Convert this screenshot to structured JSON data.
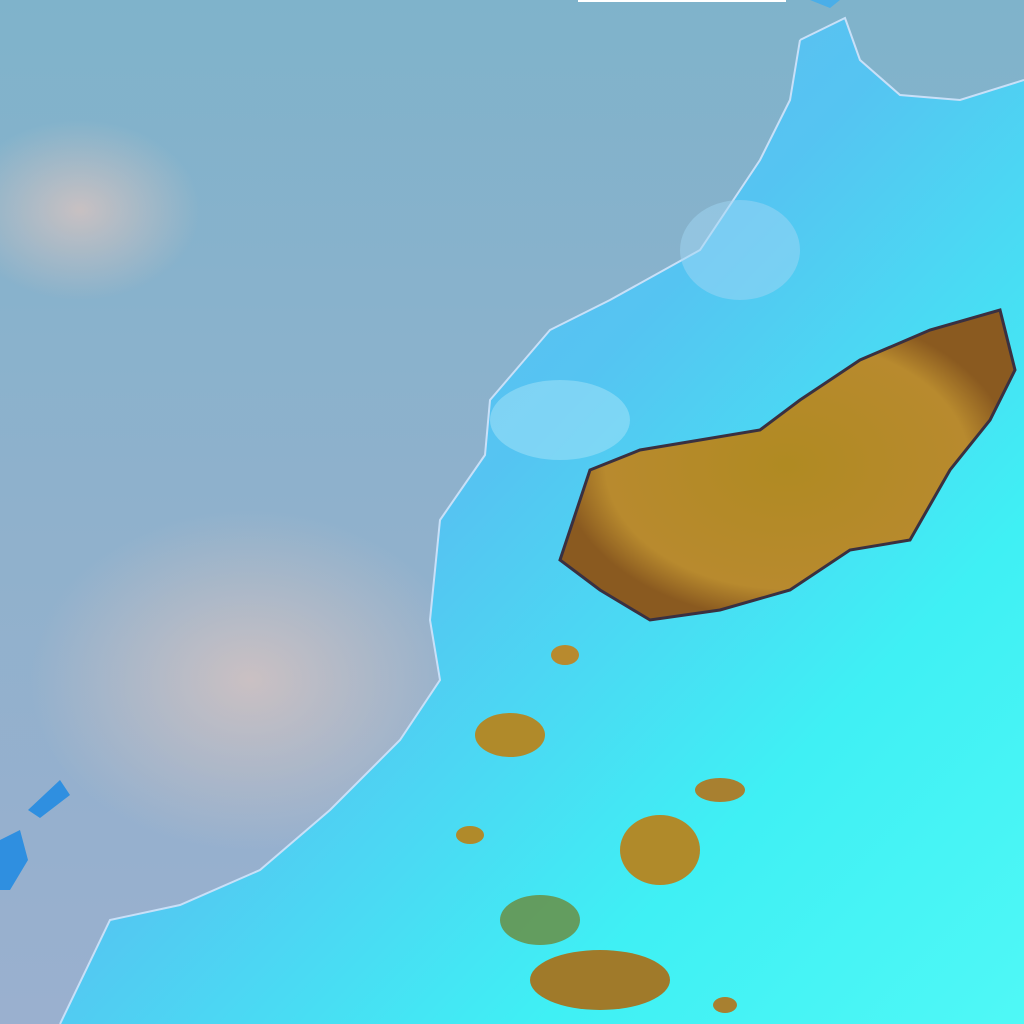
{
  "image": {
    "colors": {
      "ocean": "#86b2cc",
      "ocean_haze": "#b9c7c4",
      "land_coast": "#5fb8ee",
      "land_interior": "#3ff0f4",
      "cloud_high": "#b5882a",
      "cloud_dark": "#2a3a5a",
      "island": "#2f8fe0",
      "top_bar": "#ffffff"
    }
  }
}
